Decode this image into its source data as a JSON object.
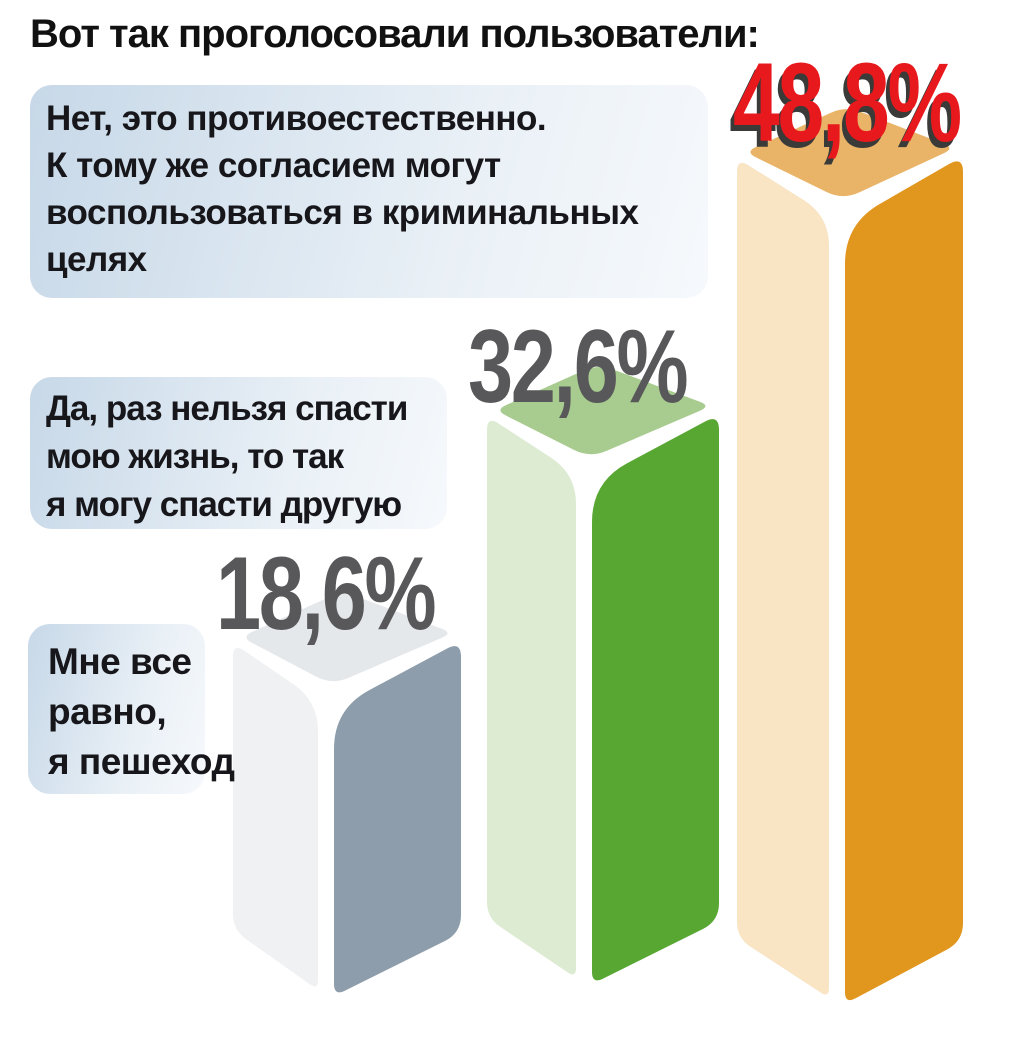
{
  "title": "Вот так проголосовали пользователи:",
  "chart_data": {
    "type": "bar",
    "unit": "%",
    "title": "Вот так проголосовали пользователи:",
    "orientation": "vertical-3d",
    "background": "#ffffff",
    "text_color": "#17171b",
    "label_box_gradient": {
      "from": "#c7d8e8",
      "to": "#f3f7fa"
    },
    "options": [
      {
        "id": "no",
        "text": "Нет, это противоестественно.\nК тому же согласием могут\nвоспользоваться в криминальных\nцелях",
        "value": 48.8,
        "value_display": "48,8%",
        "value_color": "#e8191d",
        "value_shadow_color": "#3a3a39",
        "bar_colors": {
          "top": "#e9b468",
          "left": "#f9e4c4",
          "right": "#e1961e"
        }
      },
      {
        "id": "yes",
        "text": "Да, раз нельзя спасти\nмою жизнь, то так\nя могу спасти другую",
        "value": 32.6,
        "value_display": "32,6%",
        "value_color": "#58585a",
        "bar_colors": {
          "top": "#a8cb8f",
          "left": "#dcebd2",
          "right": "#58a733"
        }
      },
      {
        "id": "indifferent",
        "text": "Мне все\nравно,\nя пешеход",
        "value": 18.6,
        "value_display": "18,6%",
        "value_color": "#58585a",
        "bar_colors": {
          "top": "#e4e8ea",
          "left": "#eff1f3",
          "right": "#8e9dab"
        }
      }
    ]
  }
}
